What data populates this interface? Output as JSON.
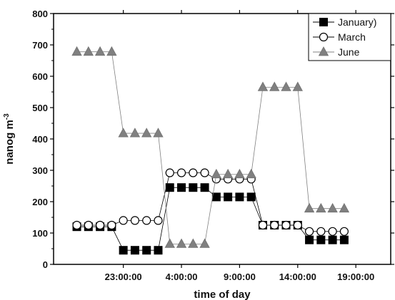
{
  "chart_data": {
    "type": "line",
    "xlabel": "time of day",
    "ylabel_main": "nanog m",
    "ylabel_sup": "-3",
    "x_min": 0,
    "x_max": 29,
    "x_ticks": [
      {
        "x": 6,
        "label": "23:00:00"
      },
      {
        "x": 11,
        "label": "4:00:00"
      },
      {
        "x": 16,
        "label": "9:00:00"
      },
      {
        "x": 21,
        "label": "14:00:00"
      },
      {
        "x": 26,
        "label": "19:00:00"
      }
    ],
    "ylim": [
      0,
      800
    ],
    "y_ticks": [
      0,
      100,
      200,
      300,
      400,
      500,
      600,
      700,
      800
    ],
    "grid": false,
    "legend_position": "top-right",
    "x": [
      2,
      3,
      4,
      5,
      6,
      7,
      8,
      9,
      10,
      11,
      12,
      13,
      14,
      15,
      16,
      17,
      18,
      19,
      20,
      21,
      22,
      23,
      24,
      25,
      26
    ],
    "series": [
      {
        "name": "January)",
        "marker": "square-filled",
        "color": "#000000",
        "values": [
          120,
          120,
          120,
          120,
          45,
          45,
          45,
          45,
          245,
          245,
          245,
          245,
          215,
          215,
          215,
          215,
          125,
          125,
          125,
          125,
          78,
          78,
          78,
          78,
          null
        ]
      },
      {
        "name": "March",
        "marker": "circle-open",
        "color": "#000000",
        "values": [
          125,
          125,
          125,
          125,
          140,
          140,
          140,
          140,
          292,
          292,
          292,
          292,
          272,
          272,
          272,
          272,
          125,
          125,
          125,
          125,
          105,
          105,
          105,
          105,
          null
        ]
      },
      {
        "name": "June",
        "marker": "triangle-filled",
        "color": "#808080",
        "values": [
          678,
          678,
          678,
          678,
          418,
          418,
          418,
          418,
          65,
          65,
          65,
          65,
          287,
          287,
          287,
          287,
          565,
          565,
          565,
          565,
          178,
          178,
          178,
          178,
          null
        ]
      }
    ]
  }
}
